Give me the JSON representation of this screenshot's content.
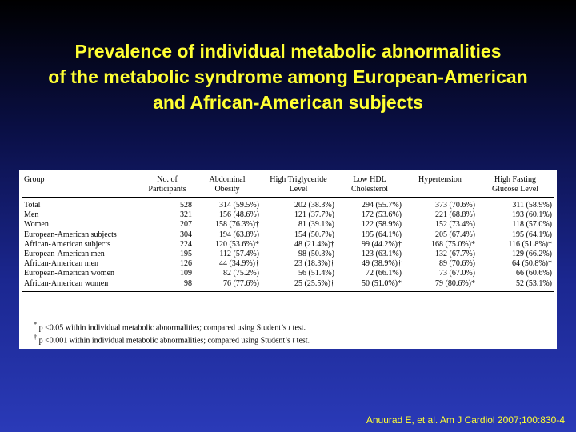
{
  "title": {
    "line1": "Prevalence of individual metabolic abnormalities",
    "line2": "of the metabolic syndrome among European-American",
    "line3": "and African-American subjects"
  },
  "table": {
    "headers": [
      {
        "l1": "Group",
        "l2": ""
      },
      {
        "l1": "No. of",
        "l2": "Participants"
      },
      {
        "l1": "Abdominal",
        "l2": "Obesity"
      },
      {
        "l1": "High Triglyceride",
        "l2": "Level"
      },
      {
        "l1": "Low HDL",
        "l2": "Cholesterol"
      },
      {
        "l1": "Hypertension",
        "l2": ""
      },
      {
        "l1": "High Fasting",
        "l2": "Glucose Level"
      }
    ],
    "rows": [
      [
        "Total",
        "528",
        "314 (59.5%)",
        "202 (38.3%)",
        "294 (55.7%)",
        "373 (70.6%)",
        "311 (58.9%)"
      ],
      [
        "Men",
        "321",
        "156 (48.6%)",
        "121 (37.7%)",
        "172 (53.6%)",
        "221 (68.8%)",
        "193 (60.1%)"
      ],
      [
        "Women",
        "207",
        "158 (76.3%)†",
        "81 (39.1%)",
        "122 (58.9%)",
        "152 (73.4%)",
        "118 (57.0%)"
      ],
      [
        "European-American subjects",
        "304",
        "194 (63.8%)",
        "154 (50.7%)",
        "195 (64.1%)",
        "205 (67.4%)",
        "195 (64.1%)"
      ],
      [
        "African-American subjects",
        "224",
        "120 (53.6%)*",
        "48 (21.4%)†",
        "99 (44.2%)†",
        "168 (75.0%)*",
        "116 (51.8%)*"
      ],
      [
        "European-American men",
        "195",
        "112 (57.4%)",
        "98 (50.3%)",
        "123 (63.1%)",
        "132 (67.7%)",
        "129 (66.2%)"
      ],
      [
        "African-American men",
        "126",
        "44 (34.9%)†",
        "23 (18.3%)†",
        "49 (38.9%)†",
        "89 (70.6%)",
        "64 (50.8%)*"
      ],
      [
        "European-American women",
        "109",
        "82 (75.2%)",
        "56 (51.4%)",
        "72 (66.1%)",
        "73 (67.0%)",
        "66 (60.6%)"
      ],
      [
        "African-American women",
        "98",
        "76 (77.6%)",
        "25 (25.5%)†",
        "50 (51.0%)*",
        "79 (80.6%)*",
        "52 (53.1%)"
      ]
    ],
    "footnotes": [
      {
        "mark": "*",
        "pre": " p <0.05 within individual metabolic abnormalities; compared using Student’s ",
        "t": "t",
        "post": " test."
      },
      {
        "mark": "†",
        "pre": " p <0.001 within individual metabolic abnormalities; compared using Student’s ",
        "t": "t",
        "post": " test."
      }
    ]
  },
  "citation": "Anuurad E, et al. Am J Cardiol 2007;100:830-4"
}
